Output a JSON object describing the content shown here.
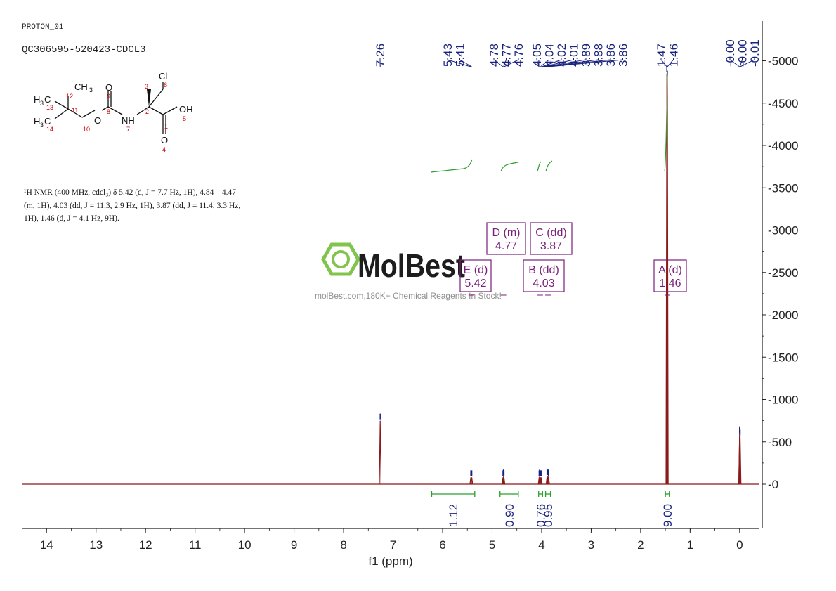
{
  "header": {
    "experiment": "PROTON_01",
    "sample": "QC306595-520423-CDCL3"
  },
  "nmr_text": {
    "line1": "¹H NMR (400 MHz, cdcl₃) δ 5.42 (d, J = 7.7 Hz, 1H), 4.84 – 4.47",
    "line2": "(m, 1H), 4.03 (dd, J = 11.3, 2.9 Hz, 1H), 3.87 (dd, J = 11.4, 3.3 Hz,",
    "line3": "1H), 1.46 (d, J = 4.1 Hz, 9H)."
  },
  "watermark": {
    "brand": "MolBest",
    "tagline": "molBest.com,180K+ Chemical Reagents In Stock!"
  },
  "structure": {
    "labels": {
      "cl": "Cl",
      "oh": "OH",
      "nh": "NH",
      "o_carbonyl_top": "O",
      "o_ester": "O",
      "o_acid": "O",
      "ch3_top": "CH",
      "h3c_a": "H",
      "h3c_b": "H",
      "c3_a": "C",
      "c3_b": "C",
      "sub3": "3"
    },
    "atom_numbers": [
      "1",
      "2",
      "3",
      "4",
      "5",
      "6",
      "7",
      "8",
      "9",
      "10",
      "11",
      "12",
      "13",
      "14"
    ]
  },
  "colors": {
    "spectrum": "#8b1a1a",
    "integral": "#2ca02c",
    "peak_label": "#1a237e",
    "multiplet": "#7b1f7b",
    "atom_number": "#cc0000",
    "logo_green": "#7ac143"
  },
  "chart_data": {
    "type": "line",
    "title": "",
    "xlabel": "f1 (ppm)",
    "ylabel": "",
    "xlim": [
      14.5,
      -0.4
    ],
    "ylim": [
      -500,
      5300
    ],
    "x_ticks": [
      14,
      13,
      12,
      11,
      10,
      9,
      8,
      7,
      6,
      5,
      4,
      3,
      2,
      1,
      0
    ],
    "x_tick_labels": [
      "14",
      "13",
      "12",
      "11",
      "10",
      "9",
      "8",
      "7",
      "6",
      "5",
      "4",
      "3",
      "2",
      "1",
      "0"
    ],
    "y_ticks": [
      0,
      500,
      1000,
      1500,
      2000,
      2500,
      3000,
      3500,
      4000,
      4500,
      5000
    ],
    "y_tick_labels": [
      "0",
      "500",
      "1000",
      "1500",
      "2000",
      "2500",
      "3000",
      "3500",
      "4000",
      "4500",
      "5000"
    ],
    "peaks": [
      {
        "ppm": 7.26,
        "height": 750,
        "width": 0.008
      },
      {
        "ppm": 5.43,
        "height": 80,
        "width": 0.006
      },
      {
        "ppm": 5.41,
        "height": 80,
        "width": 0.006
      },
      {
        "ppm": 4.78,
        "height": 80,
        "width": 0.006
      },
      {
        "ppm": 4.77,
        "height": 90,
        "width": 0.006
      },
      {
        "ppm": 4.76,
        "height": 80,
        "width": 0.006
      },
      {
        "ppm": 4.05,
        "height": 80,
        "width": 0.006
      },
      {
        "ppm": 4.04,
        "height": 90,
        "width": 0.006
      },
      {
        "ppm": 4.02,
        "height": 80,
        "width": 0.006
      },
      {
        "ppm": 4.01,
        "height": 80,
        "width": 0.006
      },
      {
        "ppm": 3.89,
        "height": 90,
        "width": 0.006
      },
      {
        "ppm": 3.88,
        "height": 90,
        "width": 0.006
      },
      {
        "ppm": 3.86,
        "height": 90,
        "width": 0.006
      },
      {
        "ppm": 3.86,
        "height": 80,
        "width": 0.006
      },
      {
        "ppm": 1.47,
        "height": 4850,
        "width": 0.008
      },
      {
        "ppm": 1.46,
        "height": 4800,
        "width": 0.008
      },
      {
        "ppm": 0.0,
        "height": 600,
        "width": 0.006
      },
      {
        "ppm": 0.0,
        "height": 580,
        "width": 0.006
      },
      {
        "ppm": -0.01,
        "height": 560,
        "width": 0.006
      }
    ],
    "peak_labels": [
      "7.26",
      "5.43",
      "5.41",
      "4.78",
      "4.77",
      "4.76",
      "4.05",
      "4.04",
      "4.02",
      "4.01",
      "3.89",
      "3.88",
      "3.86",
      "3.86",
      "1.47",
      "1.46",
      "-0.00",
      "-0.00",
      "-0.01"
    ],
    "peak_label_groups": [
      {
        "ppm_from": 7.26,
        "ppm_to": 7.26,
        "labels": [
          "7.26"
        ]
      },
      {
        "ppm_from": 5.43,
        "ppm_to": 5.41,
        "labels": [
          "5.43",
          "5.41"
        ]
      },
      {
        "ppm_from": 4.78,
        "ppm_to": 4.76,
        "labels": [
          "4.78",
          "4.77",
          "4.76"
        ]
      },
      {
        "ppm_from": 4.05,
        "ppm_to": 3.86,
        "labels": [
          "4.05",
          "4.04",
          "4.02",
          "4.01",
          "3.89",
          "3.88",
          "3.86",
          "3.86"
        ]
      },
      {
        "ppm_from": 1.47,
        "ppm_to": 1.46,
        "labels": [
          "1.47",
          "1.46"
        ]
      },
      {
        "ppm_from": 0.0,
        "ppm_to": -0.01,
        "labels": [
          "-0.00",
          "-0.00",
          "-0.01"
        ]
      }
    ],
    "integrals": [
      {
        "from": 6.22,
        "to": 5.35,
        "value": "1.12"
      },
      {
        "from": 4.84,
        "to": 4.47,
        "value": "0.90"
      },
      {
        "from": 4.06,
        "to": 3.98,
        "value": "0.76"
      },
      {
        "from": 3.92,
        "to": 3.82,
        "value": "0.95"
      },
      {
        "from": 1.5,
        "to": 1.42,
        "value": "9.00"
      }
    ],
    "multiplets": [
      {
        "letter": "E",
        "mult": "(d)",
        "shift": "5.42",
        "ppm": 5.42
      },
      {
        "letter": "D",
        "mult": "(m)",
        "shift": "4.77",
        "ppm": 4.77
      },
      {
        "letter": "C",
        "mult": "(dd)",
        "shift": "3.87",
        "ppm": 3.87
      },
      {
        "letter": "B",
        "mult": "(dd)",
        "shift": "4.03",
        "ppm": 4.03
      },
      {
        "letter": "A",
        "mult": "(d)",
        "shift": "1.46",
        "ppm": 1.46
      }
    ]
  }
}
